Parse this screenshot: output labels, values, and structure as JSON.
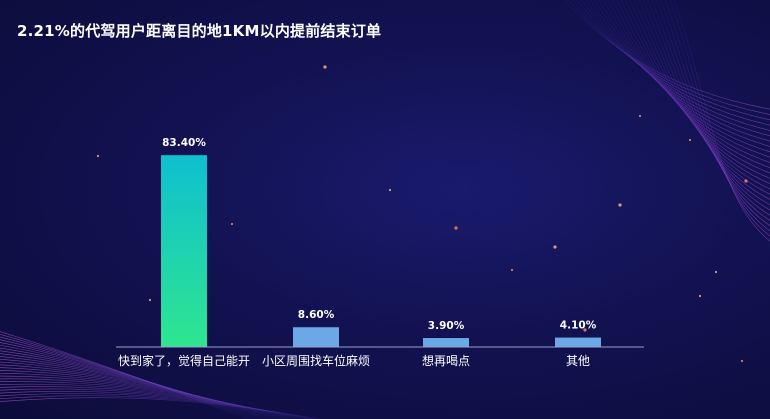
{
  "title": "2.21%的代驾用户距离目的地1KM以内提前结束订单",
  "chart_data": {
    "type": "bar",
    "categories": [
      "快到家了，觉得自己能开",
      "小区周围找车位麻烦",
      "想再喝点",
      "其他"
    ],
    "values": [
      83.4,
      8.6,
      3.9,
      4.1
    ],
    "value_labels": [
      "83.40%",
      "8.60%",
      "3.90%",
      "4.10%"
    ],
    "ylim": [
      0,
      100
    ],
    "grid": false,
    "colors": {
      "first_bar_top": "#0fbfd0",
      "first_bar_bottom": "#2ee68f",
      "other_bars": "#6aa8e6",
      "baseline": "#9aa0c8",
      "label_text": "#ffffff"
    }
  }
}
